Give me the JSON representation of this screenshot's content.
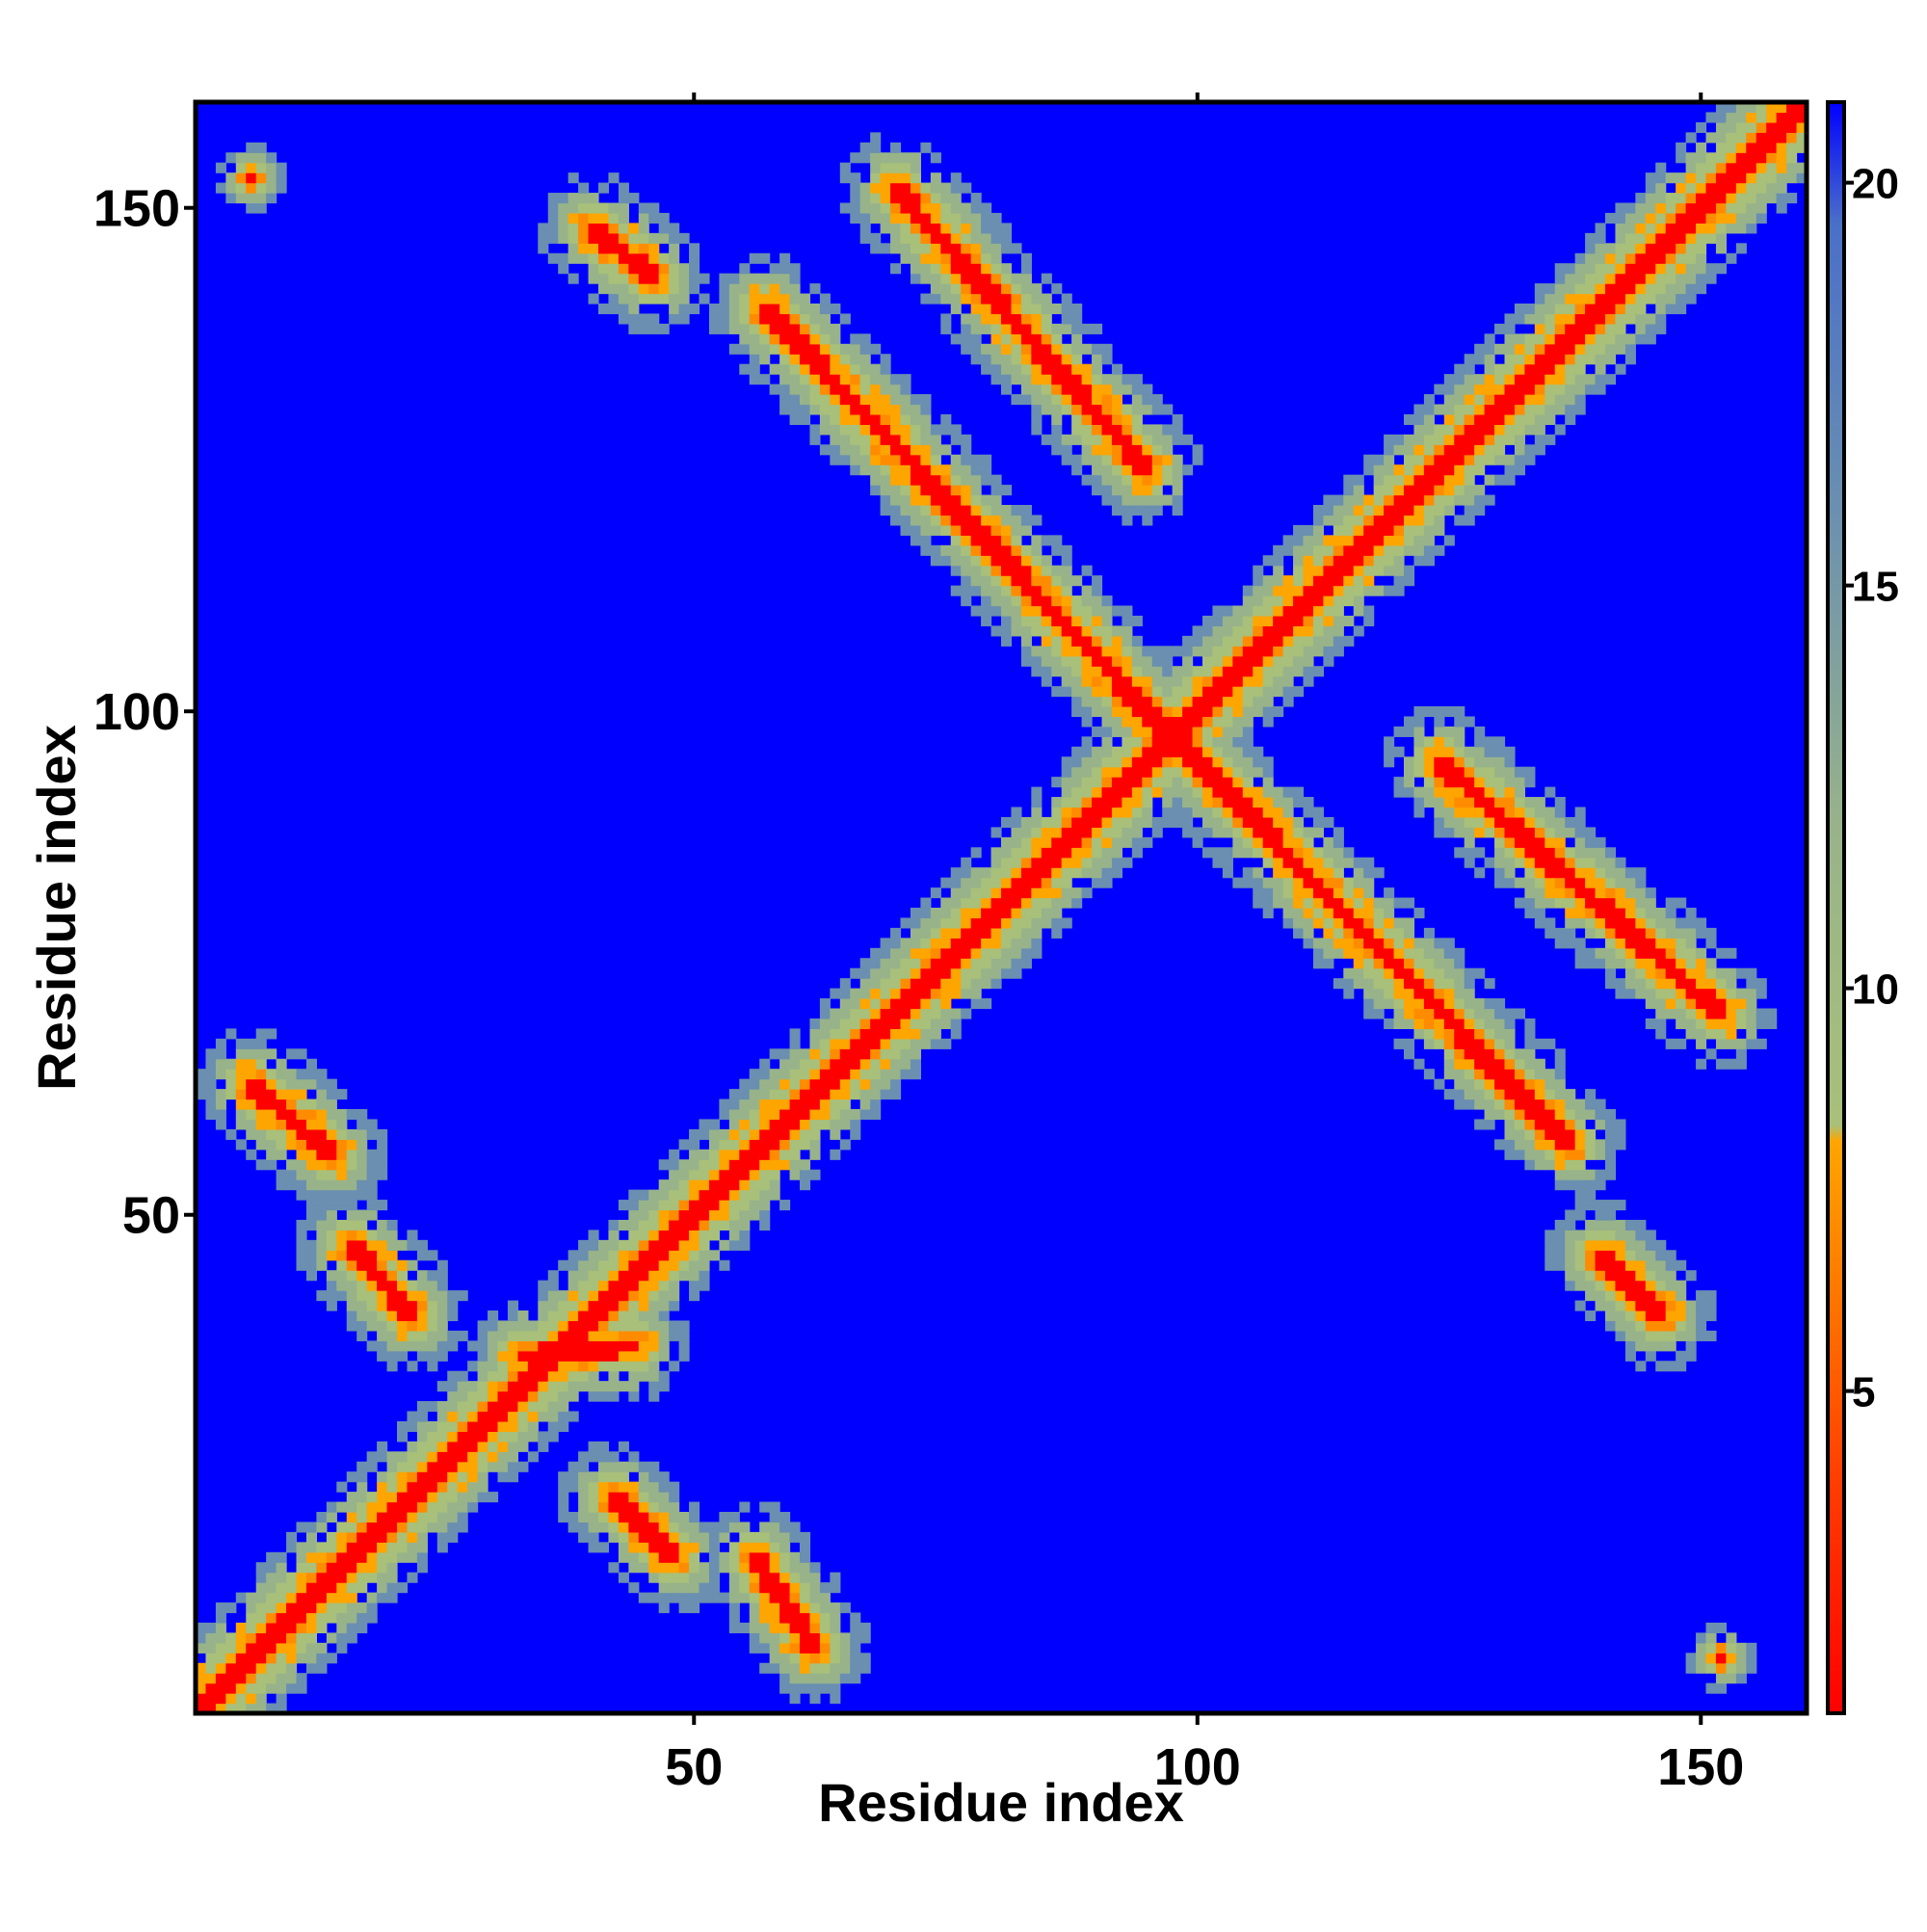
{
  "chart_data": {
    "type": "heatmap",
    "title": "",
    "xlabel": "Residue index",
    "ylabel": "Residue index",
    "x_range": [
      1,
      160
    ],
    "y_range": [
      1,
      160
    ],
    "x_ticks": [
      50,
      100,
      150
    ],
    "x_tick_labels": [
      "50",
      "100",
      "150"
    ],
    "y_ticks": [
      50,
      100,
      150
    ],
    "y_tick_labels": [
      "50",
      "100",
      "150"
    ],
    "grid": false,
    "colorbar": {
      "position": "right",
      "range": [
        1,
        21
      ],
      "ticks": [
        5,
        10,
        15,
        20
      ],
      "tick_labels": [
        "5",
        "10",
        "15",
        "20"
      ],
      "stops": [
        {
          "value": 1,
          "color": "#ff0000"
        },
        {
          "value": 4,
          "color": "#ff4000"
        },
        {
          "value": 8.1,
          "color": "#ffa500"
        },
        {
          "value": 8.3,
          "color": "#a8c07a"
        },
        {
          "value": 12,
          "color": "#98b38a"
        },
        {
          "value": 16,
          "color": "#6a8fb0"
        },
        {
          "value": 19.5,
          "color": "#4a6fc8"
        },
        {
          "value": 21,
          "color": "#0000ff"
        }
      ]
    },
    "colors": {
      "far": "#0000ff",
      "shell_outer": "#6a8fb0",
      "shell_mid": "#98b38a",
      "shell_inner": "#a8c07a",
      "contact": "#ffa500",
      "close": "#ff8c00",
      "diagonal": "#ff0000"
    },
    "contact_features": [
      {
        "kind": "diagonal",
        "x1": 1,
        "y1": 1,
        "x2": 160,
        "y2": 160,
        "value": 1
      },
      {
        "kind": "anti-parallel",
        "x1": 57,
        "y1": 140,
        "x2": 98,
        "y2": 97,
        "value": 6
      },
      {
        "kind": "anti-parallel",
        "x1": 70,
        "y1": 152,
        "x2": 95,
        "y2": 124,
        "value": 6
      },
      {
        "kind": "anti-parallel",
        "x1": 97,
        "y1": 98,
        "x2": 137,
        "y2": 57,
        "value": 6
      },
      {
        "kind": "anti-parallel",
        "x1": 124,
        "y1": 95,
        "x2": 152,
        "y2": 70,
        "value": 6
      },
      {
        "kind": "anti-parallel",
        "x1": 40,
        "y1": 148,
        "x2": 46,
        "y2": 143,
        "value": 7
      },
      {
        "kind": "anti-parallel",
        "x1": 140,
        "y1": 46,
        "x2": 146,
        "y2": 40,
        "value": 7
      },
      {
        "kind": "anti-parallel",
        "x1": 42,
        "y1": 22,
        "x2": 48,
        "y2": 16,
        "value": 6
      },
      {
        "kind": "anti-parallel",
        "x1": 56,
        "y1": 16,
        "x2": 62,
        "y2": 7,
        "value": 6
      },
      {
        "kind": "anti-parallel",
        "x1": 6,
        "y1": 63,
        "x2": 14,
        "y2": 56,
        "value": 7
      },
      {
        "kind": "anti-parallel",
        "x1": 16,
        "y1": 47,
        "x2": 22,
        "y2": 40,
        "value": 7
      },
      {
        "kind": "parallel",
        "x1": 33,
        "y1": 36,
        "x2": 44,
        "y2": 37,
        "value": 6
      },
      {
        "kind": "spot",
        "x": 6,
        "y": 153,
        "value": 6
      },
      {
        "kind": "spot",
        "x": 152,
        "y": 6,
        "value": 6
      }
    ]
  }
}
